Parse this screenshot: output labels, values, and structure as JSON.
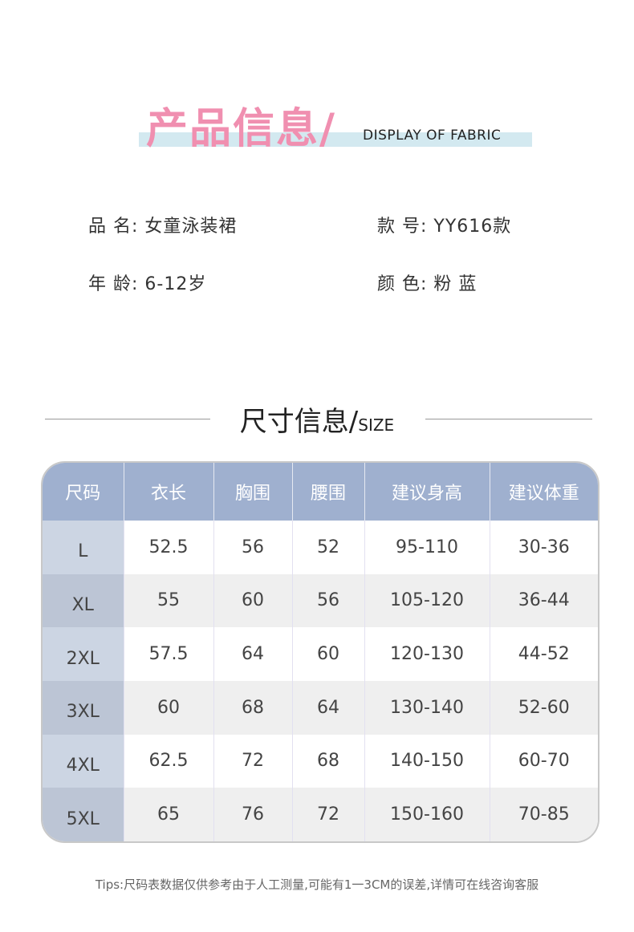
{
  "header": {
    "title_cn": "产品信息/",
    "title_en": "DISPLAY OF FABRIC",
    "band_color": "#d3e9f0",
    "title_color": "#f08fb0"
  },
  "info": {
    "name_label": "品 名:",
    "name_value": "女童泳装裙",
    "model_label": "款 号:",
    "model_value": "YY616款",
    "age_label": "年 龄:",
    "age_value": "6-12岁",
    "color_label": "颜 色:",
    "color_value": "粉 蓝"
  },
  "size_section": {
    "title_cn": "尺寸信息/",
    "title_en": "SIZE"
  },
  "table": {
    "headers": [
      "尺码",
      "衣长",
      "胸围",
      "腰围",
      "建议身高",
      "建议体重"
    ],
    "rows": [
      [
        "L",
        "52.5",
        "56",
        "52",
        "95-110",
        "30-36"
      ],
      [
        "XL",
        "55",
        "60",
        "56",
        "105-120",
        "36-44"
      ],
      [
        "2XL",
        "57.5",
        "64",
        "60",
        "120-130",
        "44-52"
      ],
      [
        "3XL",
        "60",
        "68",
        "64",
        "130-140",
        "52-60"
      ],
      [
        "4XL",
        "62.5",
        "72",
        "68",
        "140-150",
        "60-70"
      ],
      [
        "5XL",
        "65",
        "76",
        "72",
        "150-160",
        "70-85"
      ]
    ],
    "header_color": "#9fb0cf"
  },
  "tips": "Tips:尺码表数据仅供参考由于人工测量,可能有1一3CM的误差,详情可在线咨询客服"
}
